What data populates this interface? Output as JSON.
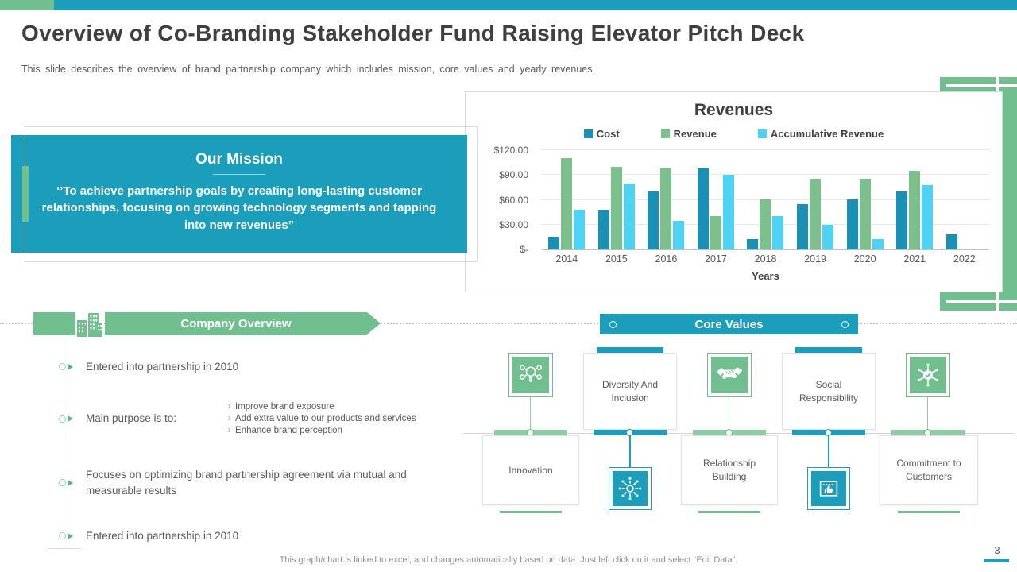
{
  "slide": {
    "title": "Overview of Co-Branding Stakeholder Fund Raising Elevator Pitch Deck",
    "subtitle": "This slide describes the overview of brand partnership company which includes mission, core values and yearly revenues.",
    "footer_note": "This graph/chart is linked to excel, and changes automatically based on data. Just left click on it and select “Edit Data”.",
    "page_number": "3"
  },
  "mission": {
    "title": "Our Mission",
    "quote": "‘’To achieve partnership goals by creating long-lasting customer relationships, focusing on growing technology segments and tapping into new revenues”"
  },
  "chart_data": {
    "type": "bar",
    "title": "Revenues",
    "xlabel": "Years",
    "categories": [
      "2014",
      "2015",
      "2016",
      "2017",
      "2018",
      "2019",
      "2020",
      "2021",
      "2022"
    ],
    "series": [
      {
        "name": "Cost",
        "color": "#1a91b4",
        "values": [
          15,
          48,
          70,
          98,
          12,
          55,
          60,
          70,
          18
        ]
      },
      {
        "name": "Revenue",
        "color": "#7cc08e",
        "values": [
          110,
          100,
          98,
          40,
          60,
          85,
          85,
          95,
          0
        ]
      },
      {
        "name": "Accumulative Revenue",
        "color": "#4ed3f4",
        "values": [
          48,
          80,
          35,
          90,
          40,
          30,
          12,
          78,
          0
        ]
      }
    ],
    "y_ticks": [
      "$120.00",
      "$90.00",
      "$60.00",
      "$30.00",
      "$-"
    ],
    "ylim": [
      0,
      120
    ],
    "grid": true,
    "legend_position": "top"
  },
  "company_overview": {
    "header": "Company Overview",
    "items": [
      {
        "text": "Entered into partnership in 2010"
      },
      {
        "text": "Main purpose is to:",
        "sub_items": [
          "Improve brand exposure",
          "Add extra value to our products and services",
          "Enhance brand perception"
        ]
      },
      {
        "text": "Focuses on optimizing brand partnership agreement via mutual and measurable results"
      },
      {
        "text": "Entered into partnership in 2010"
      }
    ]
  },
  "core_values": {
    "header": "Core Values",
    "items": [
      {
        "label": "Innovation",
        "icon": "idea-gears-icon"
      },
      {
        "label": "Diversity And Inclusion",
        "icon": "starburst-icon"
      },
      {
        "label": "Relationship Building",
        "icon": "handshake-icon"
      },
      {
        "label": "Social Responsibility",
        "icon": "approval-certificate-icon"
      },
      {
        "label": "Commitment to Customers",
        "icon": "network-check-icon"
      }
    ]
  },
  "colors": {
    "accent_teal": "#1b9dbc",
    "accent_green": "#71bf8f",
    "title_text": "#3f3f3f",
    "body_text": "#595959"
  }
}
